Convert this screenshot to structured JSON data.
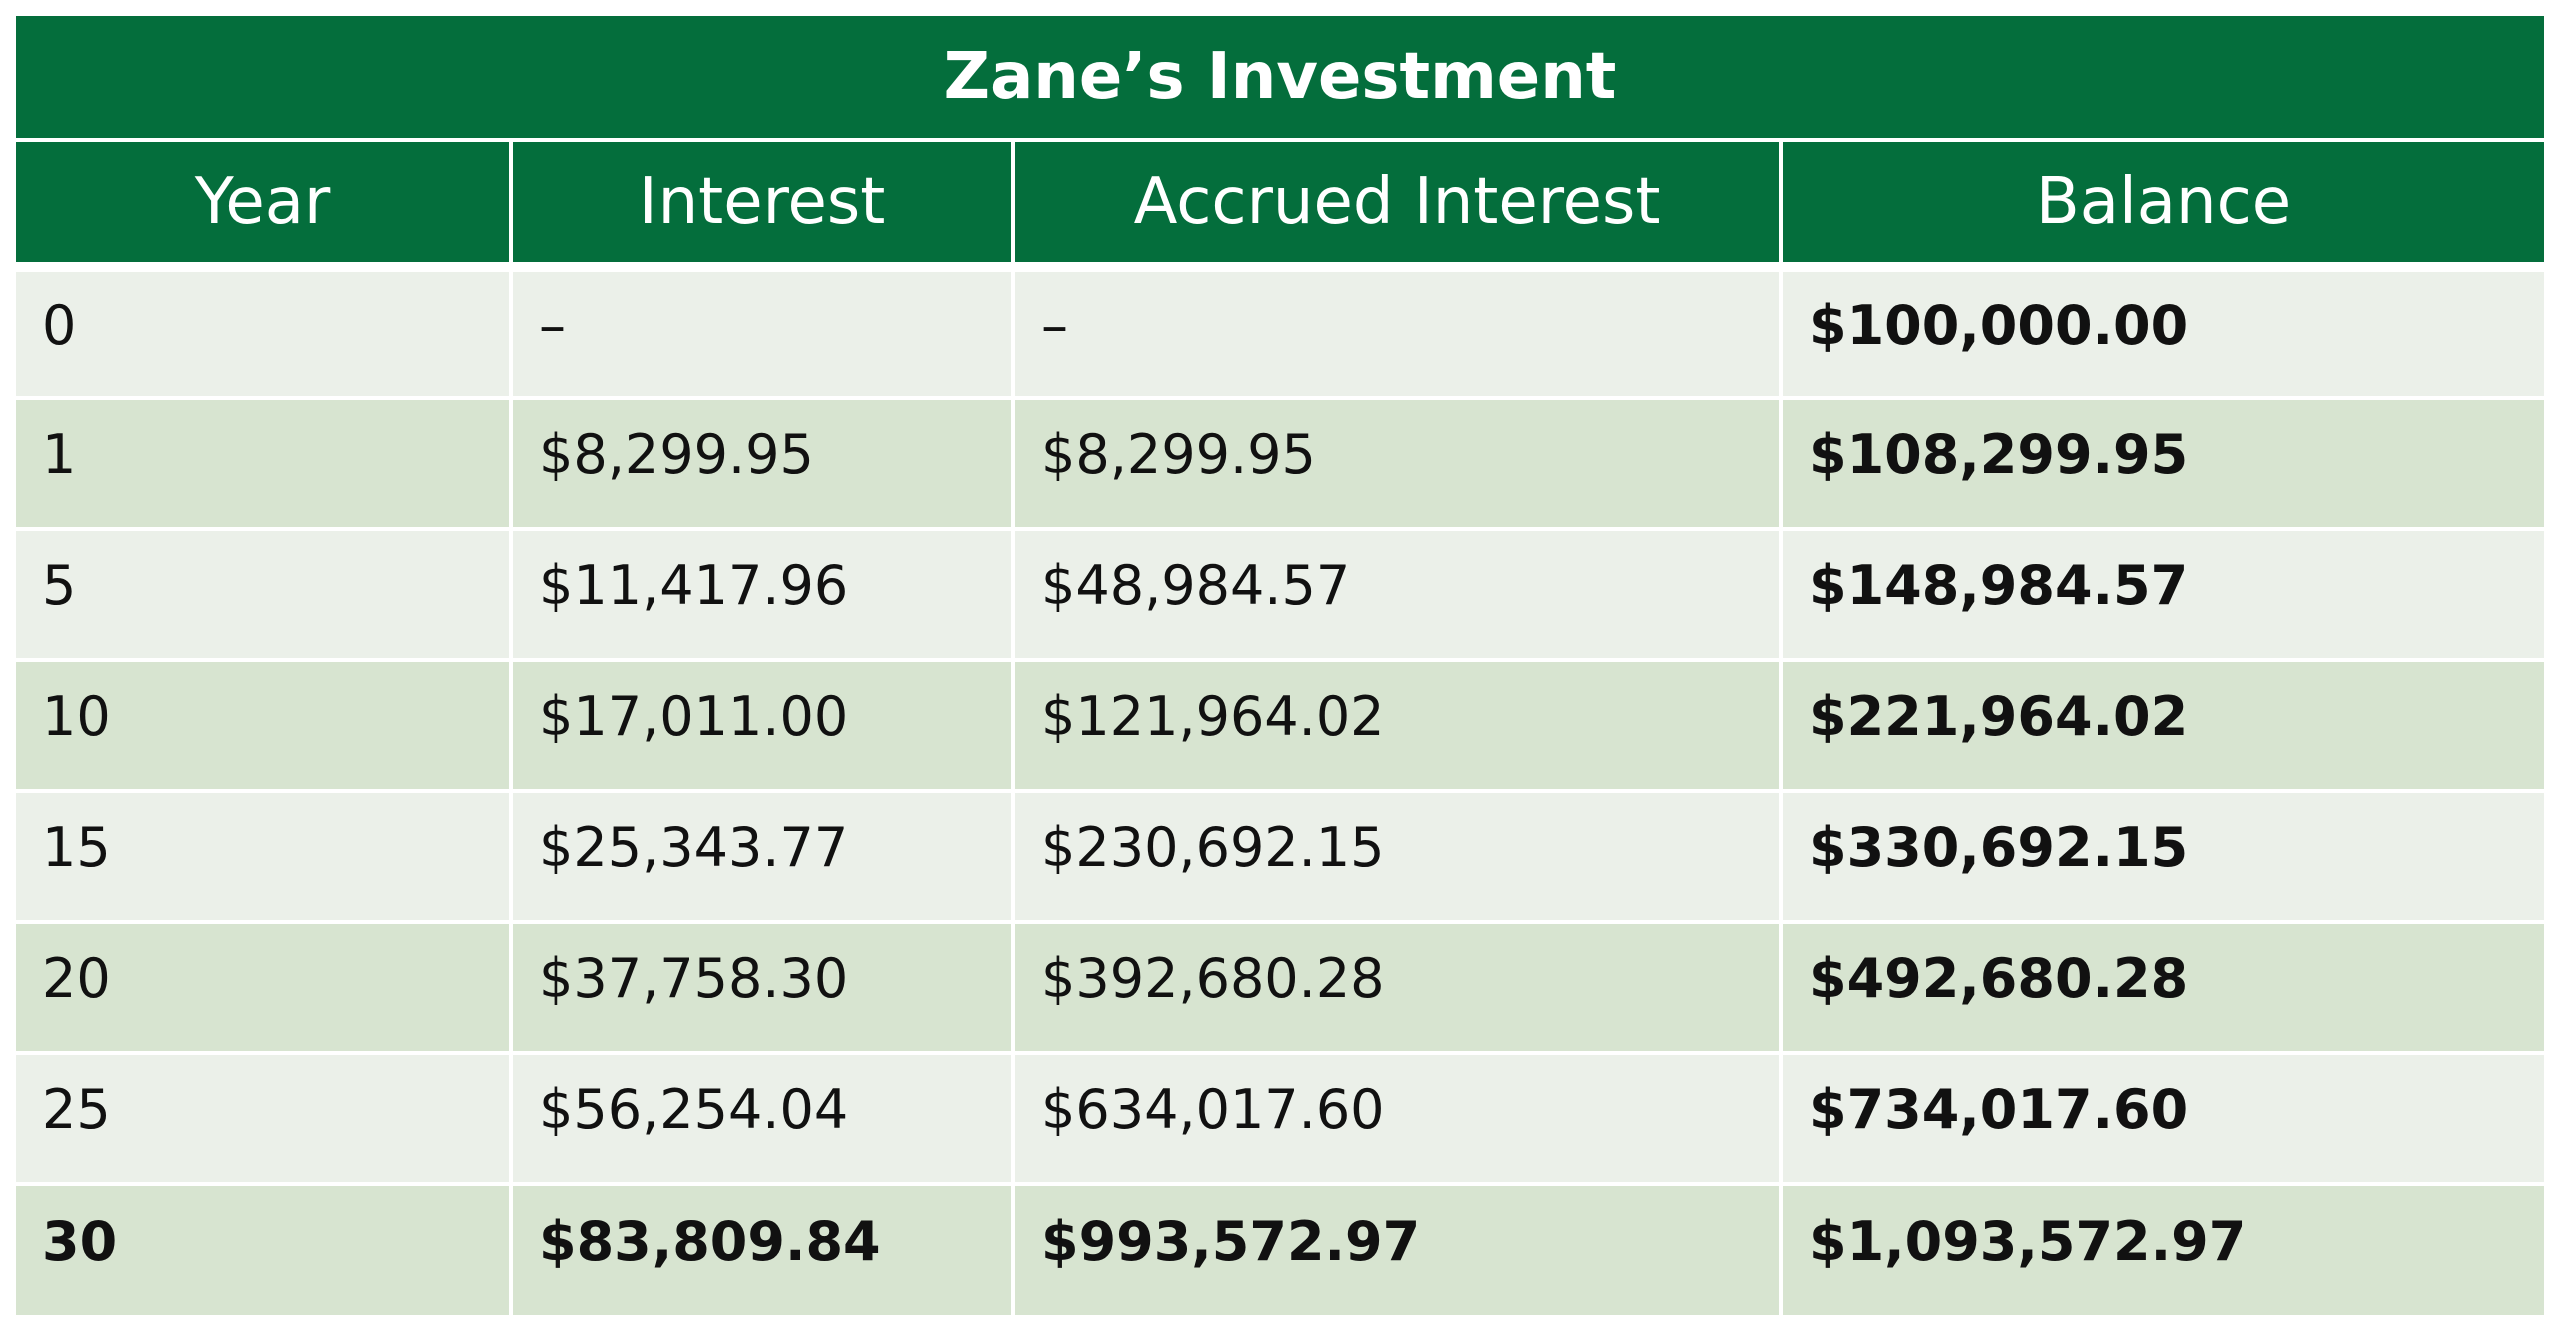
{
  "table": {
    "title": "Zane’s Investment",
    "columns": [
      "Year",
      "Interest",
      "Accrued Interest",
      "Balance"
    ],
    "rows": [
      {
        "year": "0",
        "interest": "–",
        "accrued": "–",
        "balance": "$100,000.00"
      },
      {
        "year": "1",
        "interest": "$8,299.95",
        "accrued": "$8,299.95",
        "balance": "$108,299.95"
      },
      {
        "year": "5",
        "interest": "$11,417.96",
        "accrued": "$48,984.57",
        "balance": "$148,984.57"
      },
      {
        "year": "10",
        "interest": "$17,011.00",
        "accrued": "$121,964.02",
        "balance": "$221,964.02"
      },
      {
        "year": "15",
        "interest": "$25,343.77",
        "accrued": "$230,692.15",
        "balance": "$330,692.15"
      },
      {
        "year": "20",
        "interest": "$37,758.30",
        "accrued": "$392,680.28",
        "balance": "$492,680.28"
      },
      {
        "year": "25",
        "interest": "$56,254.04",
        "accrued": "$634,017.60",
        "balance": "$734,017.60"
      },
      {
        "year": "30",
        "interest": "$83,809.84",
        "accrued": "$993,572.97",
        "balance": "$1,093,572.97"
      }
    ]
  },
  "colors": {
    "header_green": "#046e3c",
    "row_light": "#ebf0e9",
    "row_dark": "#d7e4d0"
  }
}
